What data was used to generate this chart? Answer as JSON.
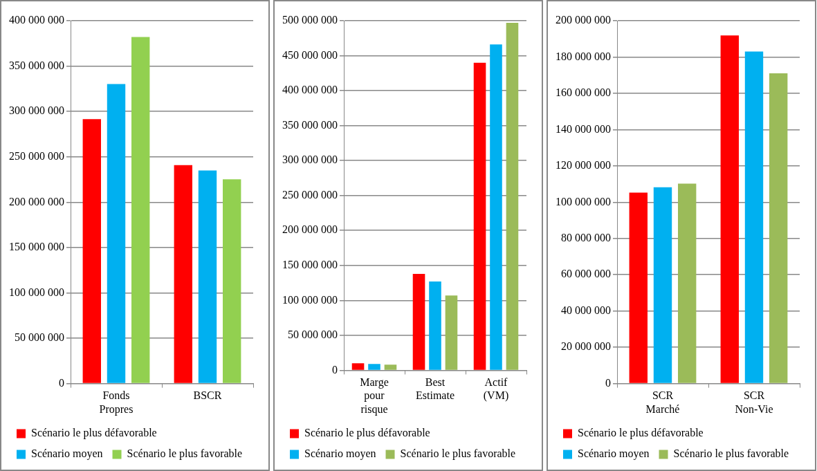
{
  "chart_data": [
    {
      "type": "bar",
      "categories": [
        "Fonds Propres",
        "BSCR"
      ],
      "series": [
        {
          "name": "Scénario le plus défavorable",
          "color": "#ff0000",
          "values": [
            291500000,
            240800000
          ]
        },
        {
          "name": "Scénario moyen",
          "color": "#00b0f0",
          "values": [
            330300000,
            235000000
          ]
        },
        {
          "name": "Scénario le plus favorable",
          "color": "#92d050",
          "values": [
            382000000,
            225200000
          ]
        }
      ],
      "ylim": [
        0,
        400000000
      ],
      "yticks": [
        0,
        50000000,
        100000000,
        150000000,
        200000000,
        250000000,
        300000000,
        350000000,
        400000000
      ],
      "grid": "y",
      "legend": "bottom"
    },
    {
      "type": "bar",
      "categories": [
        "Marge pour risque",
        "Best Estimate",
        "Actif (VM)"
      ],
      "series": [
        {
          "name": "Scénario le plus défavorable",
          "color": "#ff0000",
          "values": [
            10000000,
            138000000,
            440000000
          ]
        },
        {
          "name": "Scénario moyen",
          "color": "#00b0f0",
          "values": [
            9000000,
            127000000,
            466000000
          ]
        },
        {
          "name": "Scénario le plus favorable",
          "color": "#9bbb59",
          "values": [
            8000000,
            107000000,
            497000000
          ]
        }
      ],
      "ylim": [
        0,
        500000000
      ],
      "yticks": [
        0,
        50000000,
        100000000,
        150000000,
        200000000,
        250000000,
        300000000,
        350000000,
        400000000,
        450000000,
        500000000
      ],
      "grid": "y",
      "legend": "bottom"
    },
    {
      "type": "bar",
      "categories": [
        "SCR Marché",
        "SCR Non-Vie"
      ],
      "series": [
        {
          "name": "Scénario le plus défavorable",
          "color": "#ff0000",
          "values": [
            105300000,
            191900000
          ]
        },
        {
          "name": "Scénario moyen",
          "color": "#00b0f0",
          "values": [
            108200000,
            183000000
          ]
        },
        {
          "name": "Scénario le plus favorable",
          "color": "#9bbb59",
          "values": [
            110200000,
            171000000
          ]
        }
      ],
      "ylim": [
        0,
        200000000
      ],
      "yticks": [
        0,
        20000000,
        40000000,
        60000000,
        80000000,
        100000000,
        120000000,
        140000000,
        160000000,
        180000000,
        200000000
      ],
      "grid": "y",
      "legend": "bottom"
    }
  ]
}
